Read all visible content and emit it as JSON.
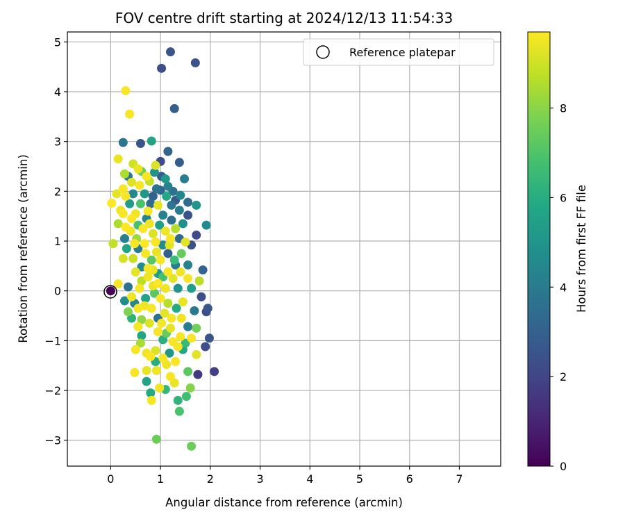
{
  "chart_data": {
    "type": "scatter",
    "title": "FOV centre drift starting at 2024/12/13 11:54:33",
    "xlabel": "Angular distance from reference (arcmin)",
    "ylabel": "Rotation from reference (arcmin)",
    "xlim": [
      -0.87,
      7.83
    ],
    "ylim": [
      -3.52,
      5.2
    ],
    "xticks": [
      0,
      1,
      2,
      3,
      4,
      5,
      6,
      7
    ],
    "yticks": [
      -3,
      -2,
      -1,
      0,
      1,
      2,
      3,
      4,
      5
    ],
    "grid": true,
    "legend": {
      "placement": "top-right",
      "entries": [
        "Reference platepar"
      ]
    },
    "reference_point": {
      "x": 0,
      "y": 0,
      "label": "Reference platepar"
    },
    "colorbar": {
      "label": "Hours from first FF file",
      "colormap": "viridis",
      "min": 0,
      "max": 9.7,
      "ticks": [
        0,
        2,
        4,
        6,
        8
      ]
    },
    "points": [
      {
        "x": 1.02,
        "y": 4.47,
        "h": 2.3
      },
      {
        "x": 1.2,
        "y": 4.8,
        "h": 2.6
      },
      {
        "x": 1.7,
        "y": 4.58,
        "h": 2.4
      },
      {
        "x": 1.28,
        "y": 3.66,
        "h": 2.9
      },
      {
        "x": 0.3,
        "y": 4.02,
        "h": 9.6
      },
      {
        "x": 0.38,
        "y": 3.55,
        "h": 9.6
      },
      {
        "x": 0.25,
        "y": 2.98,
        "h": 3.8
      },
      {
        "x": 0.6,
        "y": 2.96,
        "h": 2.6
      },
      {
        "x": 0.82,
        "y": 3.01,
        "h": 5.6
      },
      {
        "x": 1.15,
        "y": 2.8,
        "h": 3.2
      },
      {
        "x": 1.38,
        "y": 2.58,
        "h": 2.8
      },
      {
        "x": 1.0,
        "y": 2.6,
        "h": 2.2
      },
      {
        "x": 1.48,
        "y": 2.25,
        "h": 4.1
      },
      {
        "x": 0.15,
        "y": 2.65,
        "h": 9.4
      },
      {
        "x": 0.28,
        "y": 2.35,
        "h": 8.5
      },
      {
        "x": 0.45,
        "y": 2.55,
        "h": 9.0
      },
      {
        "x": 0.62,
        "y": 2.4,
        "h": 7.6
      },
      {
        "x": 0.78,
        "y": 2.2,
        "h": 8.8
      },
      {
        "x": 0.9,
        "y": 2.52,
        "h": 9.2
      },
      {
        "x": 1.1,
        "y": 2.25,
        "h": 5.2
      },
      {
        "x": 1.25,
        "y": 2.0,
        "h": 3.6
      },
      {
        "x": 1.4,
        "y": 1.92,
        "h": 4.4
      },
      {
        "x": 1.55,
        "y": 1.78,
        "h": 3.4
      },
      {
        "x": 1.72,
        "y": 1.72,
        "h": 5.0
      },
      {
        "x": 1.92,
        "y": 1.32,
        "h": 4.6
      },
      {
        "x": 1.55,
        "y": 1.52,
        "h": 2.5
      },
      {
        "x": 1.72,
        "y": 1.12,
        "h": 2.2
      },
      {
        "x": 1.62,
        "y": 0.92,
        "h": 2.4
      },
      {
        "x": 1.85,
        "y": 0.42,
        "h": 3.1
      },
      {
        "x": 1.82,
        "y": -0.12,
        "h": 2.3
      },
      {
        "x": 1.95,
        "y": -0.35,
        "h": 2.6
      },
      {
        "x": 1.92,
        "y": -0.42,
        "h": 2.2
      },
      {
        "x": 1.98,
        "y": -0.95,
        "h": 2.5
      },
      {
        "x": 1.9,
        "y": -1.12,
        "h": 2.3
      },
      {
        "x": 2.08,
        "y": -1.62,
        "h": 1.8
      },
      {
        "x": 1.75,
        "y": -1.68,
        "h": 1.6
      },
      {
        "x": 1.72,
        "y": -1.28,
        "h": 9.3
      },
      {
        "x": 1.55,
        "y": -1.62,
        "h": 7.2
      },
      {
        "x": 1.6,
        "y": -1.95,
        "h": 7.9
      },
      {
        "x": 1.52,
        "y": -2.12,
        "h": 6.7
      },
      {
        "x": 1.38,
        "y": -2.42,
        "h": 6.9
      },
      {
        "x": 1.35,
        "y": -2.2,
        "h": 6.3
      },
      {
        "x": 1.62,
        "y": -3.12,
        "h": 7.5
      },
      {
        "x": 0.92,
        "y": -2.98,
        "h": 7.5
      },
      {
        "x": 0.82,
        "y": -2.2,
        "h": 9.6
      },
      {
        "x": 0.8,
        "y": -2.05,
        "h": 5.9
      },
      {
        "x": 0.72,
        "y": -1.82,
        "h": 5.6
      },
      {
        "x": 0.72,
        "y": -1.6,
        "h": 9.4
      },
      {
        "x": 0.48,
        "y": -1.64,
        "h": 9.6
      },
      {
        "x": 0.5,
        "y": -1.18,
        "h": 9.6
      },
      {
        "x": 0.6,
        "y": -1.05,
        "h": 8.4
      },
      {
        "x": 0.98,
        "y": -1.95,
        "h": 9.5
      },
      {
        "x": 1.1,
        "y": -1.98,
        "h": 6.4
      },
      {
        "x": 1.2,
        "y": -1.72,
        "h": 9.6
      },
      {
        "x": 1.28,
        "y": -1.85,
        "h": 9.4
      },
      {
        "x": 1.3,
        "y": -1.42,
        "h": 9.6
      },
      {
        "x": 1.12,
        "y": -1.48,
        "h": 9.5
      },
      {
        "x": 0.9,
        "y": -1.2,
        "h": 9.2
      },
      {
        "x": 0.8,
        "y": -1.32,
        "h": 9.7
      },
      {
        "x": 0.92,
        "y": -1.6,
        "h": 9.5
      },
      {
        "x": 1.45,
        "y": -1.18,
        "h": 5.8
      },
      {
        "x": 1.4,
        "y": -0.92,
        "h": 9.6
      },
      {
        "x": 1.2,
        "y": -0.75,
        "h": 9.3
      },
      {
        "x": 1.05,
        "y": -0.98,
        "h": 6.1
      },
      {
        "x": 0.95,
        "y": -0.82,
        "h": 9.6
      },
      {
        "x": 0.78,
        "y": -0.65,
        "h": 9.2
      },
      {
        "x": 0.62,
        "y": -0.58,
        "h": 8.1
      },
      {
        "x": 0.68,
        "y": -0.3,
        "h": 9.5
      },
      {
        "x": 0.55,
        "y": -0.35,
        "h": 9.6
      },
      {
        "x": 0.42,
        "y": -0.12,
        "h": 9.5
      },
      {
        "x": 0.35,
        "y": -0.42,
        "h": 7.8
      },
      {
        "x": 0.28,
        "y": -0.2,
        "h": 4.7
      },
      {
        "x": 0.15,
        "y": 0.14,
        "h": 9.6
      },
      {
        "x": 0.35,
        "y": 0.08,
        "h": 3.7
      },
      {
        "x": 0.5,
        "y": 0.38,
        "h": 9.3
      },
      {
        "x": 0.62,
        "y": 0.2,
        "h": 8.7
      },
      {
        "x": 0.75,
        "y": 0.45,
        "h": 9.6
      },
      {
        "x": 0.85,
        "y": 0.1,
        "h": 9.4
      },
      {
        "x": 0.95,
        "y": 0.35,
        "h": 5.2
      },
      {
        "x": 1.0,
        "y": 0.62,
        "h": 9.6
      },
      {
        "x": 1.1,
        "y": 0.05,
        "h": 9.5
      },
      {
        "x": 1.15,
        "y": -0.25,
        "h": 8.6
      },
      {
        "x": 1.25,
        "y": 0.25,
        "h": 9.3
      },
      {
        "x": 1.35,
        "y": 0.05,
        "h": 5.0
      },
      {
        "x": 1.45,
        "y": -0.22,
        "h": 9.4
      },
      {
        "x": 1.55,
        "y": 0.25,
        "h": 9.6
      },
      {
        "x": 1.62,
        "y": 0.05,
        "h": 5.5
      },
      {
        "x": 1.68,
        "y": -0.4,
        "h": 3.9
      },
      {
        "x": 1.72,
        "y": -0.75,
        "h": 7.6
      },
      {
        "x": 1.78,
        "y": 0.2,
        "h": 8.7
      },
      {
        "x": 1.55,
        "y": 0.52,
        "h": 4.3
      },
      {
        "x": 1.42,
        "y": 0.75,
        "h": 7.4
      },
      {
        "x": 1.3,
        "y": 0.52,
        "h": 4.1
      },
      {
        "x": 1.15,
        "y": 0.75,
        "h": 2.9
      },
      {
        "x": 1.05,
        "y": 0.92,
        "h": 4.6
      },
      {
        "x": 0.92,
        "y": 0.78,
        "h": 9.4
      },
      {
        "x": 0.82,
        "y": 0.62,
        "h": 7.2
      },
      {
        "x": 0.7,
        "y": 0.75,
        "h": 9.6
      },
      {
        "x": 0.55,
        "y": 0.85,
        "h": 4.0
      },
      {
        "x": 0.45,
        "y": 0.65,
        "h": 8.9
      },
      {
        "x": 0.32,
        "y": 0.85,
        "h": 5.7
      },
      {
        "x": 0.25,
        "y": 0.65,
        "h": 9.1
      },
      {
        "x": 0.05,
        "y": 0.95,
        "h": 8.8
      },
      {
        "x": 0.28,
        "y": 1.05,
        "h": 4.2
      },
      {
        "x": 0.4,
        "y": 1.2,
        "h": 9.5
      },
      {
        "x": 0.52,
        "y": 1.05,
        "h": 8.3
      },
      {
        "x": 0.65,
        "y": 1.25,
        "h": 9.6
      },
      {
        "x": 0.72,
        "y": 1.45,
        "h": 4.4
      },
      {
        "x": 0.85,
        "y": 1.15,
        "h": 9.2
      },
      {
        "x": 0.98,
        "y": 1.32,
        "h": 5.4
      },
      {
        "x": 1.1,
        "y": 1.2,
        "h": 9.5
      },
      {
        "x": 1.22,
        "y": 1.42,
        "h": 3.5
      },
      {
        "x": 1.3,
        "y": 1.25,
        "h": 8.6
      },
      {
        "x": 1.38,
        "y": 1.05,
        "h": 3.3
      },
      {
        "x": 1.5,
        "y": 0.98,
        "h": 9.3
      },
      {
        "x": 1.45,
        "y": 1.35,
        "h": 4.8
      },
      {
        "x": 1.2,
        "y": 1.05,
        "h": 9.6
      },
      {
        "x": 1.05,
        "y": 1.52,
        "h": 4.2
      },
      {
        "x": 0.95,
        "y": 1.72,
        "h": 9.4
      },
      {
        "x": 0.85,
        "y": 1.9,
        "h": 3.0
      },
      {
        "x": 0.75,
        "y": 1.6,
        "h": 9.6
      },
      {
        "x": 0.6,
        "y": 1.75,
        "h": 6.9
      },
      {
        "x": 0.5,
        "y": 1.55,
        "h": 9.5
      },
      {
        "x": 0.38,
        "y": 1.75,
        "h": 5.3
      },
      {
        "x": 0.25,
        "y": 1.55,
        "h": 9.6
      },
      {
        "x": 0.15,
        "y": 1.35,
        "h": 8.5
      },
      {
        "x": 0.02,
        "y": 1.76,
        "h": 9.7
      },
      {
        "x": 0.12,
        "y": 1.95,
        "h": 9.3
      },
      {
        "x": 0.25,
        "y": 2.05,
        "h": 9.6
      },
      {
        "x": 0.35,
        "y": 2.3,
        "h": 3.9
      },
      {
        "x": 0.45,
        "y": 1.95,
        "h": 4.5
      },
      {
        "x": 0.58,
        "y": 2.12,
        "h": 9.6
      },
      {
        "x": 0.68,
        "y": 1.95,
        "h": 5.1
      },
      {
        "x": 0.8,
        "y": 1.75,
        "h": 3.4
      },
      {
        "x": 0.92,
        "y": 2.05,
        "h": 3.7
      },
      {
        "x": 1.02,
        "y": 2.3,
        "h": 2.8
      },
      {
        "x": 1.15,
        "y": 2.1,
        "h": 4.3
      },
      {
        "x": 1.3,
        "y": 1.82,
        "h": 2.7
      },
      {
        "x": 1.38,
        "y": 1.62,
        "h": 4.0
      },
      {
        "x": 1.22,
        "y": 1.72,
        "h": 3.8
      },
      {
        "x": 1.12,
        "y": 1.9,
        "h": 5.8
      },
      {
        "x": 1.0,
        "y": 2.02,
        "h": 3.1
      },
      {
        "x": 0.88,
        "y": 2.38,
        "h": 4.9
      },
      {
        "x": 0.72,
        "y": 2.3,
        "h": 9.6
      },
      {
        "x": 0.55,
        "y": 2.45,
        "h": 9.4
      },
      {
        "x": 0.42,
        "y": 2.18,
        "h": 9.2
      },
      {
        "x": 0.3,
        "y": 1.9,
        "h": 9.6
      },
      {
        "x": 0.62,
        "y": 0.48,
        "h": 4.6
      },
      {
        "x": 0.75,
        "y": 0.28,
        "h": 9.5
      },
      {
        "x": 0.88,
        "y": -0.05,
        "h": 7.1
      },
      {
        "x": 1.0,
        "y": -0.15,
        "h": 9.6
      },
      {
        "x": 1.08,
        "y": -0.45,
        "h": 9.3
      },
      {
        "x": 0.95,
        "y": -0.55,
        "h": 3.6
      },
      {
        "x": 0.82,
        "y": -0.35,
        "h": 9.6
      },
      {
        "x": 0.7,
        "y": -0.15,
        "h": 5.6
      },
      {
        "x": 0.58,
        "y": 0.05,
        "h": 9.6
      },
      {
        "x": 0.48,
        "y": -0.25,
        "h": 4.4
      },
      {
        "x": 1.22,
        "y": -0.55,
        "h": 9.6
      },
      {
        "x": 1.32,
        "y": -0.35,
        "h": 5.9
      },
      {
        "x": 1.42,
        "y": -0.55,
        "h": 9.5
      },
      {
        "x": 1.55,
        "y": -0.72,
        "h": 4.0
      },
      {
        "x": 1.62,
        "y": -0.95,
        "h": 9.6
      },
      {
        "x": 1.5,
        "y": -1.05,
        "h": 6.5
      },
      {
        "x": 1.35,
        "y": -1.12,
        "h": 9.6
      },
      {
        "x": 1.18,
        "y": -1.25,
        "h": 5.1
      },
      {
        "x": 1.05,
        "y": -1.35,
        "h": 9.6
      },
      {
        "x": 0.9,
        "y": -1.42,
        "h": 6.0
      },
      {
        "x": 0.72,
        "y": -1.25,
        "h": 9.5
      },
      {
        "x": 0.62,
        "y": -0.9,
        "h": 5.7
      },
      {
        "x": 0.55,
        "y": -0.72,
        "h": 9.6
      },
      {
        "x": 0.42,
        "y": -0.55,
        "h": 6.2
      },
      {
        "x": 1.02,
        "y": -0.65,
        "h": 9.6
      },
      {
        "x": 1.12,
        "y": -0.85,
        "h": 7.4
      },
      {
        "x": 1.25,
        "y": -1.02,
        "h": 9.6
      },
      {
        "x": 1.15,
        "y": 0.38,
        "h": 9.6
      },
      {
        "x": 1.28,
        "y": 0.62,
        "h": 6.6
      },
      {
        "x": 1.4,
        "y": 0.38,
        "h": 9.5
      },
      {
        "x": 0.95,
        "y": 0.15,
        "h": 9.7
      },
      {
        "x": 1.05,
        "y": 0.28,
        "h": 6.8
      },
      {
        "x": 0.85,
        "y": 0.42,
        "h": 9.4
      },
      {
        "x": 0.68,
        "y": 0.95,
        "h": 9.7
      },
      {
        "x": 0.55,
        "y": 1.32,
        "h": 6.8
      },
      {
        "x": 0.42,
        "y": 1.45,
        "h": 9.7
      },
      {
        "x": 0.9,
        "y": 0.98,
        "h": 9.6
      },
      {
        "x": 0.78,
        "y": 1.35,
        "h": 9.5
      },
      {
        "x": 1.18,
        "y": 0.92,
        "h": 9.3
      },
      {
        "x": 0.3,
        "y": 1.28,
        "h": 9.7
      },
      {
        "x": 0.2,
        "y": 1.62,
        "h": 9.5
      },
      {
        "x": 0.48,
        "y": 0.95,
        "h": 9.6
      }
    ]
  }
}
